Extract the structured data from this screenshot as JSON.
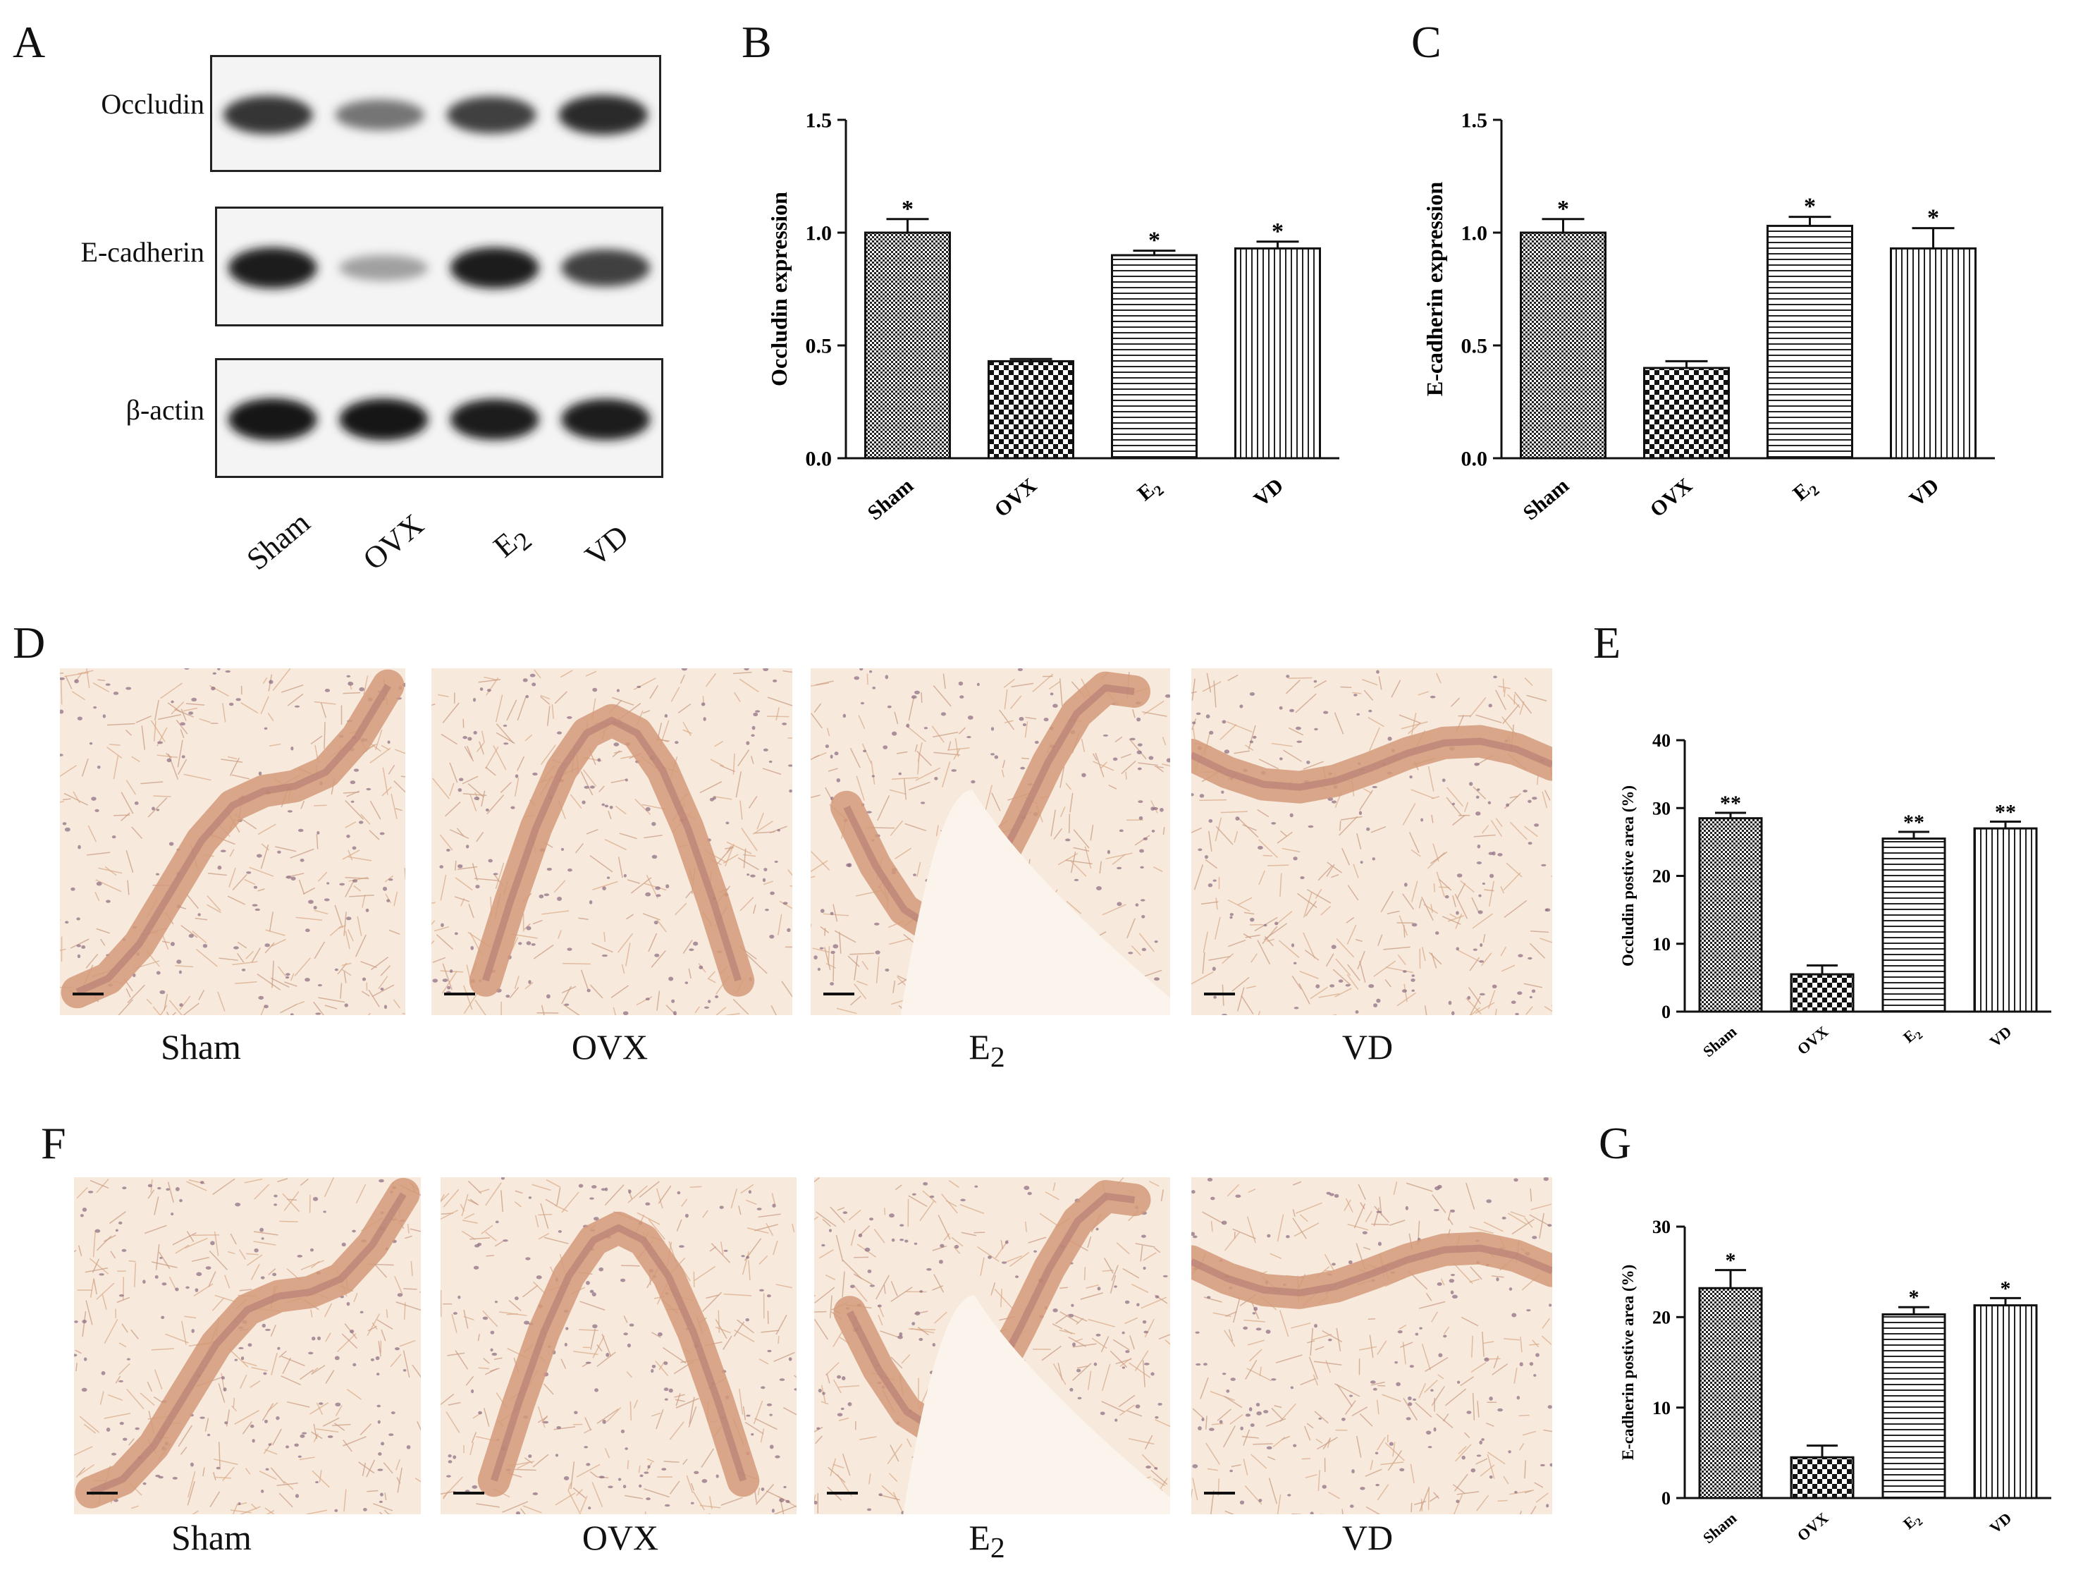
{
  "panels": {
    "A": "A",
    "B": "B",
    "C": "C",
    "D": "D",
    "E": "E",
    "F": "F",
    "G": "G"
  },
  "western_blot": {
    "rows": [
      {
        "label": "Occludin",
        "intensities": [
          0.85,
          0.55,
          0.8,
          0.9
        ]
      },
      {
        "label": "E-cadherin",
        "intensities": [
          0.95,
          0.35,
          0.95,
          0.8
        ]
      },
      {
        "label": "β-actin",
        "intensities": [
          1.0,
          0.98,
          0.95,
          0.96
        ]
      }
    ],
    "lanes": [
      {
        "main": "Sham",
        "sub": ""
      },
      {
        "main": "OVX",
        "sub": ""
      },
      {
        "main": "E",
        "sub": "2"
      },
      {
        "main": "VD",
        "sub": ""
      }
    ]
  },
  "micrographs": {
    "D": [
      {
        "main": "Sham",
        "sub": ""
      },
      {
        "main": "OVX",
        "sub": ""
      },
      {
        "main": "E",
        "sub": "2"
      },
      {
        "main": "VD",
        "sub": ""
      }
    ],
    "F": [
      {
        "main": "Sham",
        "sub": ""
      },
      {
        "main": "OVX",
        "sub": ""
      },
      {
        "main": "E",
        "sub": "2"
      },
      {
        "main": "VD",
        "sub": ""
      }
    ]
  },
  "chart_data": [
    {
      "panel": "B",
      "type": "bar",
      "ylabel": "Occludin expression",
      "ylim": [
        0,
        1.5
      ],
      "yticks": [
        "0.0",
        "0.5",
        "1.0",
        "1.5"
      ],
      "categories": [
        {
          "main": "Sham",
          "sub": ""
        },
        {
          "main": "OVX",
          "sub": ""
        },
        {
          "main": "E",
          "sub": "2"
        },
        {
          "main": "VD",
          "sub": ""
        }
      ],
      "values": [
        1.0,
        0.43,
        0.9,
        0.93
      ],
      "errors": [
        0.06,
        0.01,
        0.02,
        0.03
      ],
      "significance": [
        "*",
        "",
        "*",
        "*"
      ],
      "patterns": [
        "dense-check",
        "check",
        "horizontal",
        "vertical"
      ]
    },
    {
      "panel": "C",
      "type": "bar",
      "ylabel": "E-cadherin expression",
      "ylim": [
        0,
        1.5
      ],
      "yticks": [
        "0.0",
        "0.5",
        "1.0",
        "1.5"
      ],
      "categories": [
        {
          "main": "Sham",
          "sub": ""
        },
        {
          "main": "OVX",
          "sub": ""
        },
        {
          "main": "E",
          "sub": "2"
        },
        {
          "main": "VD",
          "sub": ""
        }
      ],
      "values": [
        1.0,
        0.4,
        1.03,
        0.93
      ],
      "errors": [
        0.06,
        0.03,
        0.04,
        0.09
      ],
      "significance": [
        "*",
        "",
        "*",
        "*"
      ],
      "patterns": [
        "dense-check",
        "check",
        "horizontal",
        "vertical"
      ]
    },
    {
      "panel": "E",
      "type": "bar",
      "ylabel": "Occludin postive area (%)",
      "ylim": [
        0,
        40
      ],
      "yticks": [
        "0",
        "10",
        "20",
        "30",
        "40"
      ],
      "categories": [
        {
          "main": "Sham",
          "sub": ""
        },
        {
          "main": "OVX",
          "sub": ""
        },
        {
          "main": "E",
          "sub": "2"
        },
        {
          "main": "VD",
          "sub": ""
        }
      ],
      "values": [
        28.5,
        5.5,
        25.5,
        27.0
      ],
      "errors": [
        0.8,
        1.3,
        1.0,
        1.0
      ],
      "significance": [
        "**",
        "",
        "**",
        "**"
      ],
      "patterns": [
        "dense-check",
        "check",
        "horizontal",
        "vertical"
      ]
    },
    {
      "panel": "G",
      "type": "bar",
      "ylabel": "E-cadherin postive area (%)",
      "ylim": [
        0,
        30
      ],
      "yticks": [
        "0",
        "10",
        "20",
        "30"
      ],
      "categories": [
        {
          "main": "Sham",
          "sub": ""
        },
        {
          "main": "OVX",
          "sub": ""
        },
        {
          "main": "E",
          "sub": "2"
        },
        {
          "main": "VD",
          "sub": ""
        }
      ],
      "values": [
        23.2,
        4.5,
        20.3,
        21.3
      ],
      "errors": [
        2.0,
        1.3,
        0.8,
        0.8
      ],
      "significance": [
        "*",
        "",
        "*",
        "*"
      ],
      "patterns": [
        "dense-check",
        "check",
        "horizontal",
        "vertical"
      ]
    }
  ]
}
